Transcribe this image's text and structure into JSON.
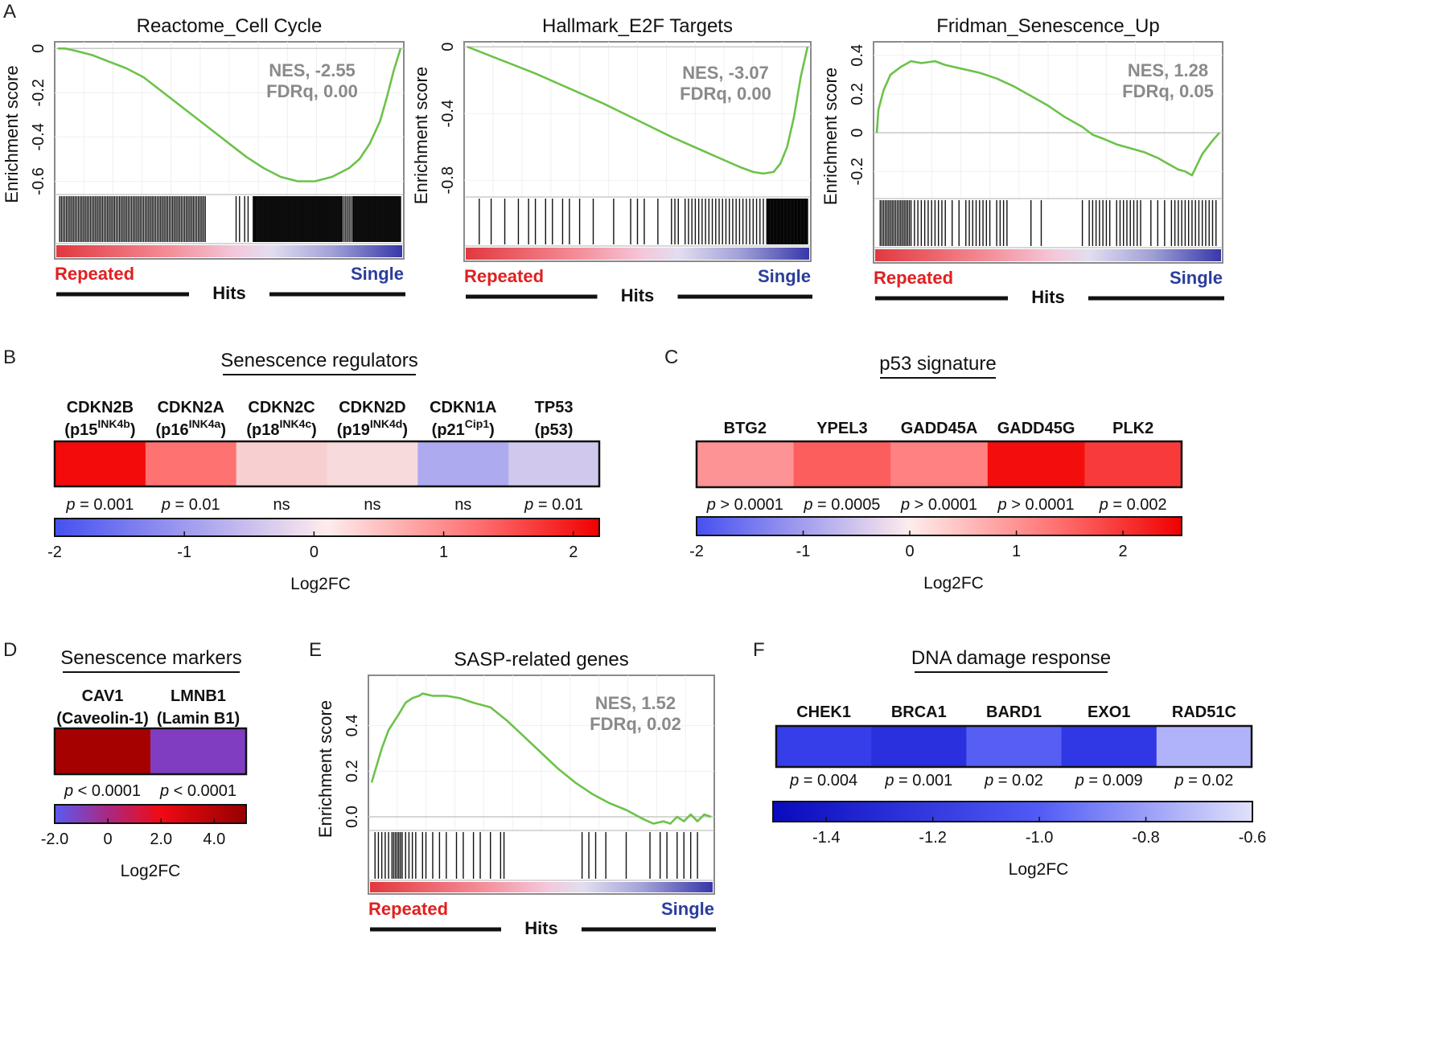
{
  "panel_letters": [
    "A",
    "B",
    "C",
    "D",
    "E",
    "F"
  ],
  "common": {
    "enrichment_axis_label": "Enrichment score",
    "repeated_label": "Repeated",
    "single_label": "Single",
    "hits_label": "Hits",
    "log2fc_label": "Log2FC"
  },
  "colors": {
    "curve": "#6cc24a",
    "repeated_text": "#e02020",
    "single_text": "#2a3d9c",
    "nes_text": "#8a8a8a"
  },
  "chart_data": [
    {
      "type": "line",
      "id": "gsea-reactome",
      "title": "Reactome_Cell Cycle",
      "ylabel": "Enrichment score",
      "ylim": [
        -0.66,
        0.03
      ],
      "yticks": [
        0,
        -0.2,
        -0.4,
        -0.6
      ],
      "ytick_labels": [
        "0",
        "-0.2",
        "-0.4",
        "-0.6"
      ],
      "nes_label": "NES, -2.55",
      "fdr_label": "FDRq, 0.00",
      "x": [
        0,
        0.02,
        0.05,
        0.1,
        0.15,
        0.2,
        0.25,
        0.3,
        0.35,
        0.4,
        0.45,
        0.5,
        0.55,
        0.6,
        0.65,
        0.7,
        0.75,
        0.8,
        0.85,
        0.88,
        0.91,
        0.94,
        0.96,
        0.98,
        1.0
      ],
      "y": [
        0.0,
        0.0,
        -0.01,
        -0.03,
        -0.06,
        -0.09,
        -0.13,
        -0.19,
        -0.25,
        -0.31,
        -0.37,
        -0.43,
        -0.49,
        -0.54,
        -0.58,
        -0.6,
        -0.6,
        -0.58,
        -0.54,
        -0.5,
        -0.43,
        -0.33,
        -0.22,
        -0.1,
        0.0
      ],
      "hits": [
        0.005,
        0.01,
        0.015,
        0.02,
        0.025,
        0.03,
        0.035,
        0.04,
        0.045,
        0.05,
        0.055,
        0.06,
        0.065,
        0.07,
        0.075,
        0.08,
        0.085,
        0.09,
        0.095,
        0.1,
        0.105,
        0.11,
        0.115,
        0.12,
        0.125,
        0.13,
        0.135,
        0.14,
        0.145,
        0.15,
        0.155,
        0.16,
        0.165,
        0.17,
        0.175,
        0.18,
        0.185,
        0.19,
        0.195,
        0.2,
        0.205,
        0.21,
        0.215,
        0.22,
        0.225,
        0.23,
        0.235,
        0.24,
        0.245,
        0.25,
        0.255,
        0.26,
        0.265,
        0.27,
        0.275,
        0.28,
        0.285,
        0.29,
        0.295,
        0.3,
        0.305,
        0.31,
        0.315,
        0.32,
        0.325,
        0.33,
        0.335,
        0.34,
        0.345,
        0.35,
        0.355,
        0.36,
        0.365,
        0.37,
        0.375,
        0.38,
        0.385,
        0.39,
        0.395,
        0.4,
        0.405,
        0.41,
        0.415,
        0.42,
        0.425,
        0.43,
        0.52,
        0.53,
        0.545,
        0.555,
        0.57,
        0.58,
        0.585,
        0.59,
        0.595,
        0.6,
        0.605,
        0.61,
        0.615,
        0.62,
        0.625,
        0.63,
        0.635,
        0.64,
        0.645,
        0.65,
        0.655,
        0.66,
        0.665,
        0.67,
        0.675,
        0.68,
        0.685,
        0.69,
        0.695,
        0.7,
        0.705,
        0.71,
        0.715,
        0.72,
        0.725,
        0.73,
        0.735,
        0.74,
        0.745,
        0.75,
        0.755,
        0.76,
        0.765,
        0.77,
        0.775,
        0.78,
        0.785,
        0.79,
        0.795,
        0.8,
        0.805,
        0.81,
        0.815,
        0.82,
        0.825,
        0.83,
        0.835,
        0.84,
        0.845,
        0.85,
        0.855,
        0.86,
        0.865,
        0.87,
        0.875,
        0.88,
        0.885,
        0.89,
        0.895,
        0.9,
        0.905,
        0.91,
        0.915,
        0.92,
        0.925,
        0.93,
        0.935,
        0.94,
        0.945,
        0.95,
        0.955,
        0.96,
        0.965,
        0.97,
        0.975,
        0.98,
        0.985,
        0.99,
        0.995,
        1.0
      ],
      "dense_hit_ranges": [
        [
          0.57,
          0.83
        ],
        [
          0.86,
          1.0
        ]
      ]
    },
    {
      "type": "line",
      "id": "gsea-hallmark",
      "title": "Hallmark_E2F Targets",
      "ylabel": "Enrichment score",
      "ylim": [
        -0.9,
        0.03
      ],
      "yticks": [
        0,
        -0.4,
        -0.8
      ],
      "ytick_labels": [
        "0",
        "-0.4",
        "-0.8"
      ],
      "nes_label": "NES, -3.07",
      "fdr_label": "FDRq, 0.00",
      "x": [
        0,
        0.1,
        0.2,
        0.3,
        0.4,
        0.5,
        0.6,
        0.7,
        0.8,
        0.84,
        0.87,
        0.9,
        0.92,
        0.94,
        0.96,
        0.98,
        1.0
      ],
      "y": [
        0.0,
        -0.08,
        -0.16,
        -0.25,
        -0.34,
        -0.44,
        -0.54,
        -0.63,
        -0.72,
        -0.75,
        -0.76,
        -0.75,
        -0.7,
        -0.6,
        -0.42,
        -0.18,
        0.0
      ],
      "hits": [
        0.035,
        0.07,
        0.11,
        0.15,
        0.18,
        0.2,
        0.23,
        0.25,
        0.28,
        0.3,
        0.33,
        0.37,
        0.43,
        0.48,
        0.5,
        0.52,
        0.56,
        0.6,
        0.61,
        0.62,
        0.64,
        0.65,
        0.66,
        0.67,
        0.68,
        0.69,
        0.7,
        0.71,
        0.72,
        0.73,
        0.74,
        0.75,
        0.76,
        0.77,
        0.78,
        0.79,
        0.8,
        0.81,
        0.82,
        0.83,
        0.84,
        0.85,
        0.86,
        0.87,
        0.88,
        0.89,
        0.9,
        0.91,
        0.92,
        0.93,
        0.94,
        0.95,
        0.96,
        0.97,
        0.98,
        0.99,
        1.0
      ],
      "dense_hit_ranges": [
        [
          0.88,
          1.0
        ]
      ]
    },
    {
      "type": "line",
      "id": "gsea-fridman",
      "title": "Fridman_Senescence_Up",
      "ylabel": "Enrichment score",
      "ylim": [
        -0.34,
        0.47
      ],
      "yticks": [
        0.4,
        0.2,
        0,
        -0.2
      ],
      "ytick_labels": [
        "0.4",
        "0.2",
        "0",
        "-0.2"
      ],
      "nes_label": "NES, 1.28",
      "fdr_label": "FDRq, 0.05",
      "x": [
        0,
        0.005,
        0.02,
        0.04,
        0.07,
        0.1,
        0.13,
        0.17,
        0.2,
        0.25,
        0.3,
        0.35,
        0.4,
        0.45,
        0.5,
        0.55,
        0.6,
        0.63,
        0.66,
        0.7,
        0.74,
        0.78,
        0.82,
        0.85,
        0.88,
        0.9,
        0.92,
        0.95,
        0.98,
        1.0
      ],
      "y": [
        0.0,
        0.12,
        0.22,
        0.3,
        0.34,
        0.37,
        0.36,
        0.37,
        0.35,
        0.33,
        0.31,
        0.28,
        0.24,
        0.19,
        0.14,
        0.08,
        0.03,
        -0.01,
        -0.03,
        -0.06,
        -0.08,
        -0.1,
        -0.13,
        -0.16,
        -0.19,
        -0.2,
        -0.22,
        -0.11,
        -0.04,
        0.0
      ],
      "hits": [
        0.01,
        0.015,
        0.02,
        0.025,
        0.03,
        0.035,
        0.04,
        0.045,
        0.05,
        0.055,
        0.06,
        0.065,
        0.07,
        0.075,
        0.08,
        0.085,
        0.09,
        0.095,
        0.1,
        0.11,
        0.12,
        0.13,
        0.14,
        0.15,
        0.16,
        0.17,
        0.18,
        0.19,
        0.2,
        0.22,
        0.24,
        0.26,
        0.27,
        0.28,
        0.29,
        0.3,
        0.31,
        0.32,
        0.33,
        0.35,
        0.36,
        0.37,
        0.38,
        0.45,
        0.48,
        0.6,
        0.62,
        0.63,
        0.64,
        0.65,
        0.66,
        0.67,
        0.68,
        0.7,
        0.71,
        0.72,
        0.73,
        0.74,
        0.75,
        0.76,
        0.77,
        0.8,
        0.82,
        0.84,
        0.86,
        0.87,
        0.88,
        0.89,
        0.9,
        0.91,
        0.92,
        0.93,
        0.94,
        0.95,
        0.96,
        0.97,
        0.98,
        0.99
      ],
      "dense_hit_ranges": []
    },
    {
      "type": "heatmap",
      "id": "heatmap-senescence-regulators",
      "title": "Senescence regulators",
      "genes": [
        {
          "symbol": "CDKN2B",
          "alias": "p15",
          "sup": "INK4b"
        },
        {
          "symbol": "CDKN2A",
          "alias": "p16",
          "sup": "INK4a"
        },
        {
          "symbol": "CDKN2C",
          "alias": "p18",
          "sup": "INK4c"
        },
        {
          "symbol": "CDKN2D",
          "alias": "p19",
          "sup": "INK4d"
        },
        {
          "symbol": "CDKN1A",
          "alias": "p21",
          "sup": "Cip1"
        },
        {
          "symbol": "TP53",
          "alias": "p53",
          "sup": ""
        }
      ],
      "values": [
        2.1,
        1.1,
        0.2,
        0.1,
        -0.8,
        -0.4
      ],
      "p_values": [
        {
          "prefix": "p",
          "text": " = 0.001"
        },
        {
          "prefix": "p",
          "text": " = 0.01"
        },
        {
          "prefix": "",
          "text": "ns"
        },
        {
          "prefix": "",
          "text": "ns"
        },
        {
          "prefix": "",
          "text": "ns"
        },
        {
          "prefix": "p",
          "text": " = 0.01"
        }
      ],
      "colorbar": {
        "min": -2,
        "max": 2.2,
        "ticks": [
          -2,
          -1,
          0,
          1,
          2
        ],
        "tick_labels": [
          "-2",
          "-1",
          "0",
          "1",
          "2"
        ],
        "label": "Log2FC"
      }
    },
    {
      "type": "heatmap",
      "id": "heatmap-p53-signature",
      "title": "p53 signature",
      "genes": [
        {
          "symbol": "BTG2"
        },
        {
          "symbol": "YPEL3"
        },
        {
          "symbol": "GADD45A"
        },
        {
          "symbol": "GADD45G"
        },
        {
          "symbol": "PLK2"
        }
      ],
      "values": [
        0.9,
        1.5,
        1.1,
        2.4,
        1.9
      ],
      "p_values": [
        {
          "prefix": "p",
          "text": " > 0.0001"
        },
        {
          "prefix": "p",
          "text": " = 0.0005"
        },
        {
          "prefix": "p",
          "text": " > 0.0001"
        },
        {
          "prefix": "p",
          "text": " > 0.0001"
        },
        {
          "prefix": "p",
          "text": " = 0.002"
        }
      ],
      "colorbar": {
        "min": -2,
        "max": 2.55,
        "ticks": [
          -2,
          -1,
          0,
          1,
          2
        ],
        "tick_labels": [
          "-2",
          "-1",
          "0",
          "1",
          "2"
        ],
        "label": "Log2FC"
      }
    },
    {
      "type": "heatmap",
      "id": "heatmap-senescence-markers",
      "title": "Senescence markers",
      "genes": [
        {
          "symbol": "CAV1",
          "alias": "Caveolin-1"
        },
        {
          "symbol": "LMNB1",
          "alias": "Lamin B1"
        }
      ],
      "values": [
        5.0,
        -1.4
      ],
      "p_values": [
        {
          "prefix": "p",
          "text": " < 0.0001"
        },
        {
          "prefix": "p",
          "text": " < 0.0001"
        }
      ],
      "colorbar": {
        "min": -2.0,
        "max": 5.2,
        "ticks": [
          -2.0,
          0,
          2.0,
          4.0
        ],
        "tick_labels": [
          "-2.0",
          "0",
          "2.0",
          "4.0"
        ],
        "label": "Log2FC"
      }
    },
    {
      "type": "line",
      "id": "gsea-sasp",
      "title": "SASP-related genes",
      "ylabel": "Enrichment score",
      "ylim": [
        -0.06,
        0.62
      ],
      "yticks": [
        0.4,
        0.2,
        0.0
      ],
      "ytick_labels": [
        "0.4",
        "0.2",
        "0.0"
      ],
      "nes_label": "NES, 1.52",
      "fdr_label": "FDRq, 0.02",
      "x": [
        0,
        0.01,
        0.03,
        0.05,
        0.08,
        0.1,
        0.12,
        0.14,
        0.15,
        0.18,
        0.22,
        0.26,
        0.3,
        0.35,
        0.4,
        0.45,
        0.5,
        0.55,
        0.6,
        0.65,
        0.7,
        0.75,
        0.8,
        0.83,
        0.86,
        0.88,
        0.9,
        0.92,
        0.94,
        0.96,
        0.98,
        1.0
      ],
      "y": [
        0.15,
        0.2,
        0.3,
        0.38,
        0.45,
        0.5,
        0.52,
        0.53,
        0.54,
        0.53,
        0.53,
        0.52,
        0.5,
        0.48,
        0.42,
        0.35,
        0.28,
        0.21,
        0.15,
        0.1,
        0.06,
        0.03,
        -0.01,
        -0.03,
        -0.02,
        -0.03,
        0.0,
        -0.02,
        0.01,
        -0.02,
        0.01,
        0.0
      ],
      "hits": [
        0.01,
        0.02,
        0.03,
        0.04,
        0.05,
        0.06,
        0.065,
        0.07,
        0.075,
        0.08,
        0.085,
        0.09,
        0.1,
        0.11,
        0.12,
        0.13,
        0.15,
        0.16,
        0.18,
        0.2,
        0.22,
        0.25,
        0.27,
        0.3,
        0.32,
        0.35,
        0.38,
        0.39,
        0.62,
        0.64,
        0.66,
        0.69,
        0.75,
        0.82,
        0.85,
        0.87,
        0.9,
        0.92,
        0.94,
        0.96
      ],
      "dense_hit_ranges": []
    },
    {
      "type": "heatmap",
      "id": "heatmap-dna-damage",
      "title": "DNA damage response",
      "genes": [
        {
          "symbol": "CHEK1"
        },
        {
          "symbol": "BRCA1"
        },
        {
          "symbol": "BARD1"
        },
        {
          "symbol": "EXO1"
        },
        {
          "symbol": "RAD51C"
        }
      ],
      "values": [
        -1.2,
        -1.3,
        -1.02,
        -1.25,
        -0.7
      ],
      "p_values": [
        {
          "prefix": "p",
          "text": " = 0.004"
        },
        {
          "prefix": "p",
          "text": " = 0.001"
        },
        {
          "prefix": "p",
          "text": " = 0.02"
        },
        {
          "prefix": "p",
          "text": " = 0.009"
        },
        {
          "prefix": "p",
          "text": " = 0.02"
        }
      ],
      "colorbar": {
        "min": -1.5,
        "max": -0.6,
        "ticks": [
          -1.4,
          -1.2,
          -1.0,
          -0.8,
          -0.6
        ],
        "tick_labels": [
          "-1.4",
          "-1.2",
          "-1.0",
          "-0.8",
          "-0.6"
        ],
        "label": "Log2FC"
      }
    }
  ]
}
